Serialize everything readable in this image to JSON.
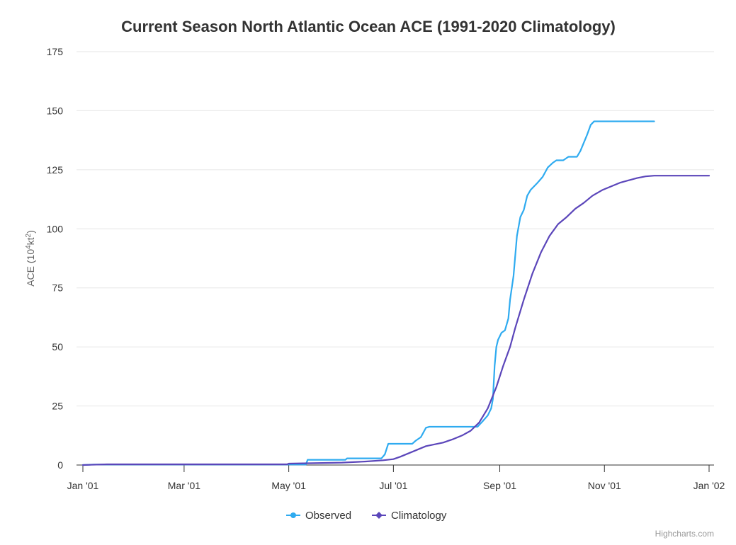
{
  "chart_data": {
    "type": "line",
    "title": "Current Season North Atlantic Ocean ACE (1991-2020 Climatology)",
    "ylabel": {
      "prefix": "ACE (10",
      "sup1": "4",
      "mid": "kt",
      "sup2": "2",
      "suffix": ")"
    },
    "ylim": [
      0,
      175
    ],
    "yticks": [
      "0",
      "25",
      "50",
      "75",
      "100",
      "125",
      "150",
      "175"
    ],
    "xlim": [
      "2001-01-01",
      "2002-01-01"
    ],
    "xticks": [
      {
        "date": "2001-01-01",
        "label": "Jan '01"
      },
      {
        "date": "2001-03-01",
        "label": "Mar '01"
      },
      {
        "date": "2001-05-01",
        "label": "May '01"
      },
      {
        "date": "2001-07-01",
        "label": "Jul '01"
      },
      {
        "date": "2001-09-01",
        "label": "Sep '01"
      },
      {
        "date": "2001-11-01",
        "label": "Nov '01"
      },
      {
        "date": "2002-01-01",
        "label": "Jan '02"
      }
    ],
    "grid": true,
    "legend_position": "bottom-center",
    "series": [
      {
        "name": "Observed",
        "color": "#2FABF0",
        "marker": "circle",
        "points": [
          [
            "2001-01-01",
            0
          ],
          [
            "2001-01-07",
            0.2
          ],
          [
            "2001-05-01",
            0.2
          ],
          [
            "2001-05-11",
            0.2
          ],
          [
            "2001-05-12",
            2.2
          ],
          [
            "2001-06-03",
            2.2
          ],
          [
            "2001-06-04",
            2.8
          ],
          [
            "2001-06-24",
            2.8
          ],
          [
            "2001-06-26",
            4.5
          ],
          [
            "2001-06-28",
            9.0
          ],
          [
            "2001-07-12",
            9.0
          ],
          [
            "2001-07-14",
            10.3
          ],
          [
            "2001-07-17",
            11.8
          ],
          [
            "2001-07-20",
            15.8
          ],
          [
            "2001-07-22",
            16.2
          ],
          [
            "2001-08-19",
            16.2
          ],
          [
            "2001-08-22",
            18.5
          ],
          [
            "2001-08-25",
            21.0
          ],
          [
            "2001-08-27",
            24.0
          ],
          [
            "2001-08-28",
            28.0
          ],
          [
            "2001-08-29",
            42.0
          ],
          [
            "2001-08-30",
            50.0
          ],
          [
            "2001-08-31",
            53.0
          ],
          [
            "2001-09-02",
            56.0
          ],
          [
            "2001-09-04",
            57.0
          ],
          [
            "2001-09-06",
            62.0
          ],
          [
            "2001-09-07",
            70.0
          ],
          [
            "2001-09-09",
            80.0
          ],
          [
            "2001-09-11",
            97.0
          ],
          [
            "2001-09-13",
            105.0
          ],
          [
            "2001-09-15",
            108.0
          ],
          [
            "2001-09-17",
            114.0
          ],
          [
            "2001-09-19",
            116.5
          ],
          [
            "2001-09-23",
            119.5
          ],
          [
            "2001-09-26",
            122.0
          ],
          [
            "2001-09-29",
            126.0
          ],
          [
            "2001-10-02",
            128.0
          ],
          [
            "2001-10-04",
            129.0
          ],
          [
            "2001-10-08",
            129.0
          ],
          [
            "2001-10-11",
            130.5
          ],
          [
            "2001-10-16",
            130.5
          ],
          [
            "2001-10-18",
            133.0
          ],
          [
            "2001-10-22",
            140.0
          ],
          [
            "2001-10-24",
            144.0
          ],
          [
            "2001-10-26",
            145.5
          ],
          [
            "2001-11-30",
            145.5
          ]
        ]
      },
      {
        "name": "Climatology",
        "color": "#5B46BA",
        "marker": "diamond",
        "points": [
          [
            "2001-01-01",
            0
          ],
          [
            "2001-01-15",
            0.3
          ],
          [
            "2001-04-30",
            0.3
          ],
          [
            "2001-05-01",
            0.6
          ],
          [
            "2001-06-01",
            1.0
          ],
          [
            "2001-06-15",
            1.5
          ],
          [
            "2001-06-25",
            2.0
          ],
          [
            "2001-07-01",
            2.5
          ],
          [
            "2001-07-05",
            3.5
          ],
          [
            "2001-07-10",
            5.0
          ],
          [
            "2001-07-15",
            6.5
          ],
          [
            "2001-07-20",
            8.0
          ],
          [
            "2001-07-30",
            9.5
          ],
          [
            "2001-08-05",
            11.0
          ],
          [
            "2001-08-10",
            12.5
          ],
          [
            "2001-08-15",
            14.5
          ],
          [
            "2001-08-20",
            18.0
          ],
          [
            "2001-08-25",
            24.0
          ],
          [
            "2001-08-30",
            33.0
          ],
          [
            "2001-09-03",
            42.0
          ],
          [
            "2001-09-07",
            50.0
          ],
          [
            "2001-09-10",
            58.0
          ],
          [
            "2001-09-15",
            70.0
          ],
          [
            "2001-09-20",
            81.0
          ],
          [
            "2001-09-25",
            90.0
          ],
          [
            "2001-09-30",
            97.0
          ],
          [
            "2001-10-05",
            102.0
          ],
          [
            "2001-10-10",
            105.0
          ],
          [
            "2001-10-15",
            108.5
          ],
          [
            "2001-10-20",
            111.0
          ],
          [
            "2001-10-25",
            114.0
          ],
          [
            "2001-10-31",
            116.5
          ],
          [
            "2001-11-05",
            118.0
          ],
          [
            "2001-11-10",
            119.5
          ],
          [
            "2001-11-15",
            120.5
          ],
          [
            "2001-11-20",
            121.5
          ],
          [
            "2001-11-25",
            122.2
          ],
          [
            "2001-11-30",
            122.5
          ],
          [
            "2002-01-01",
            122.5
          ]
        ]
      }
    ]
  },
  "credits": "Highcharts.com"
}
